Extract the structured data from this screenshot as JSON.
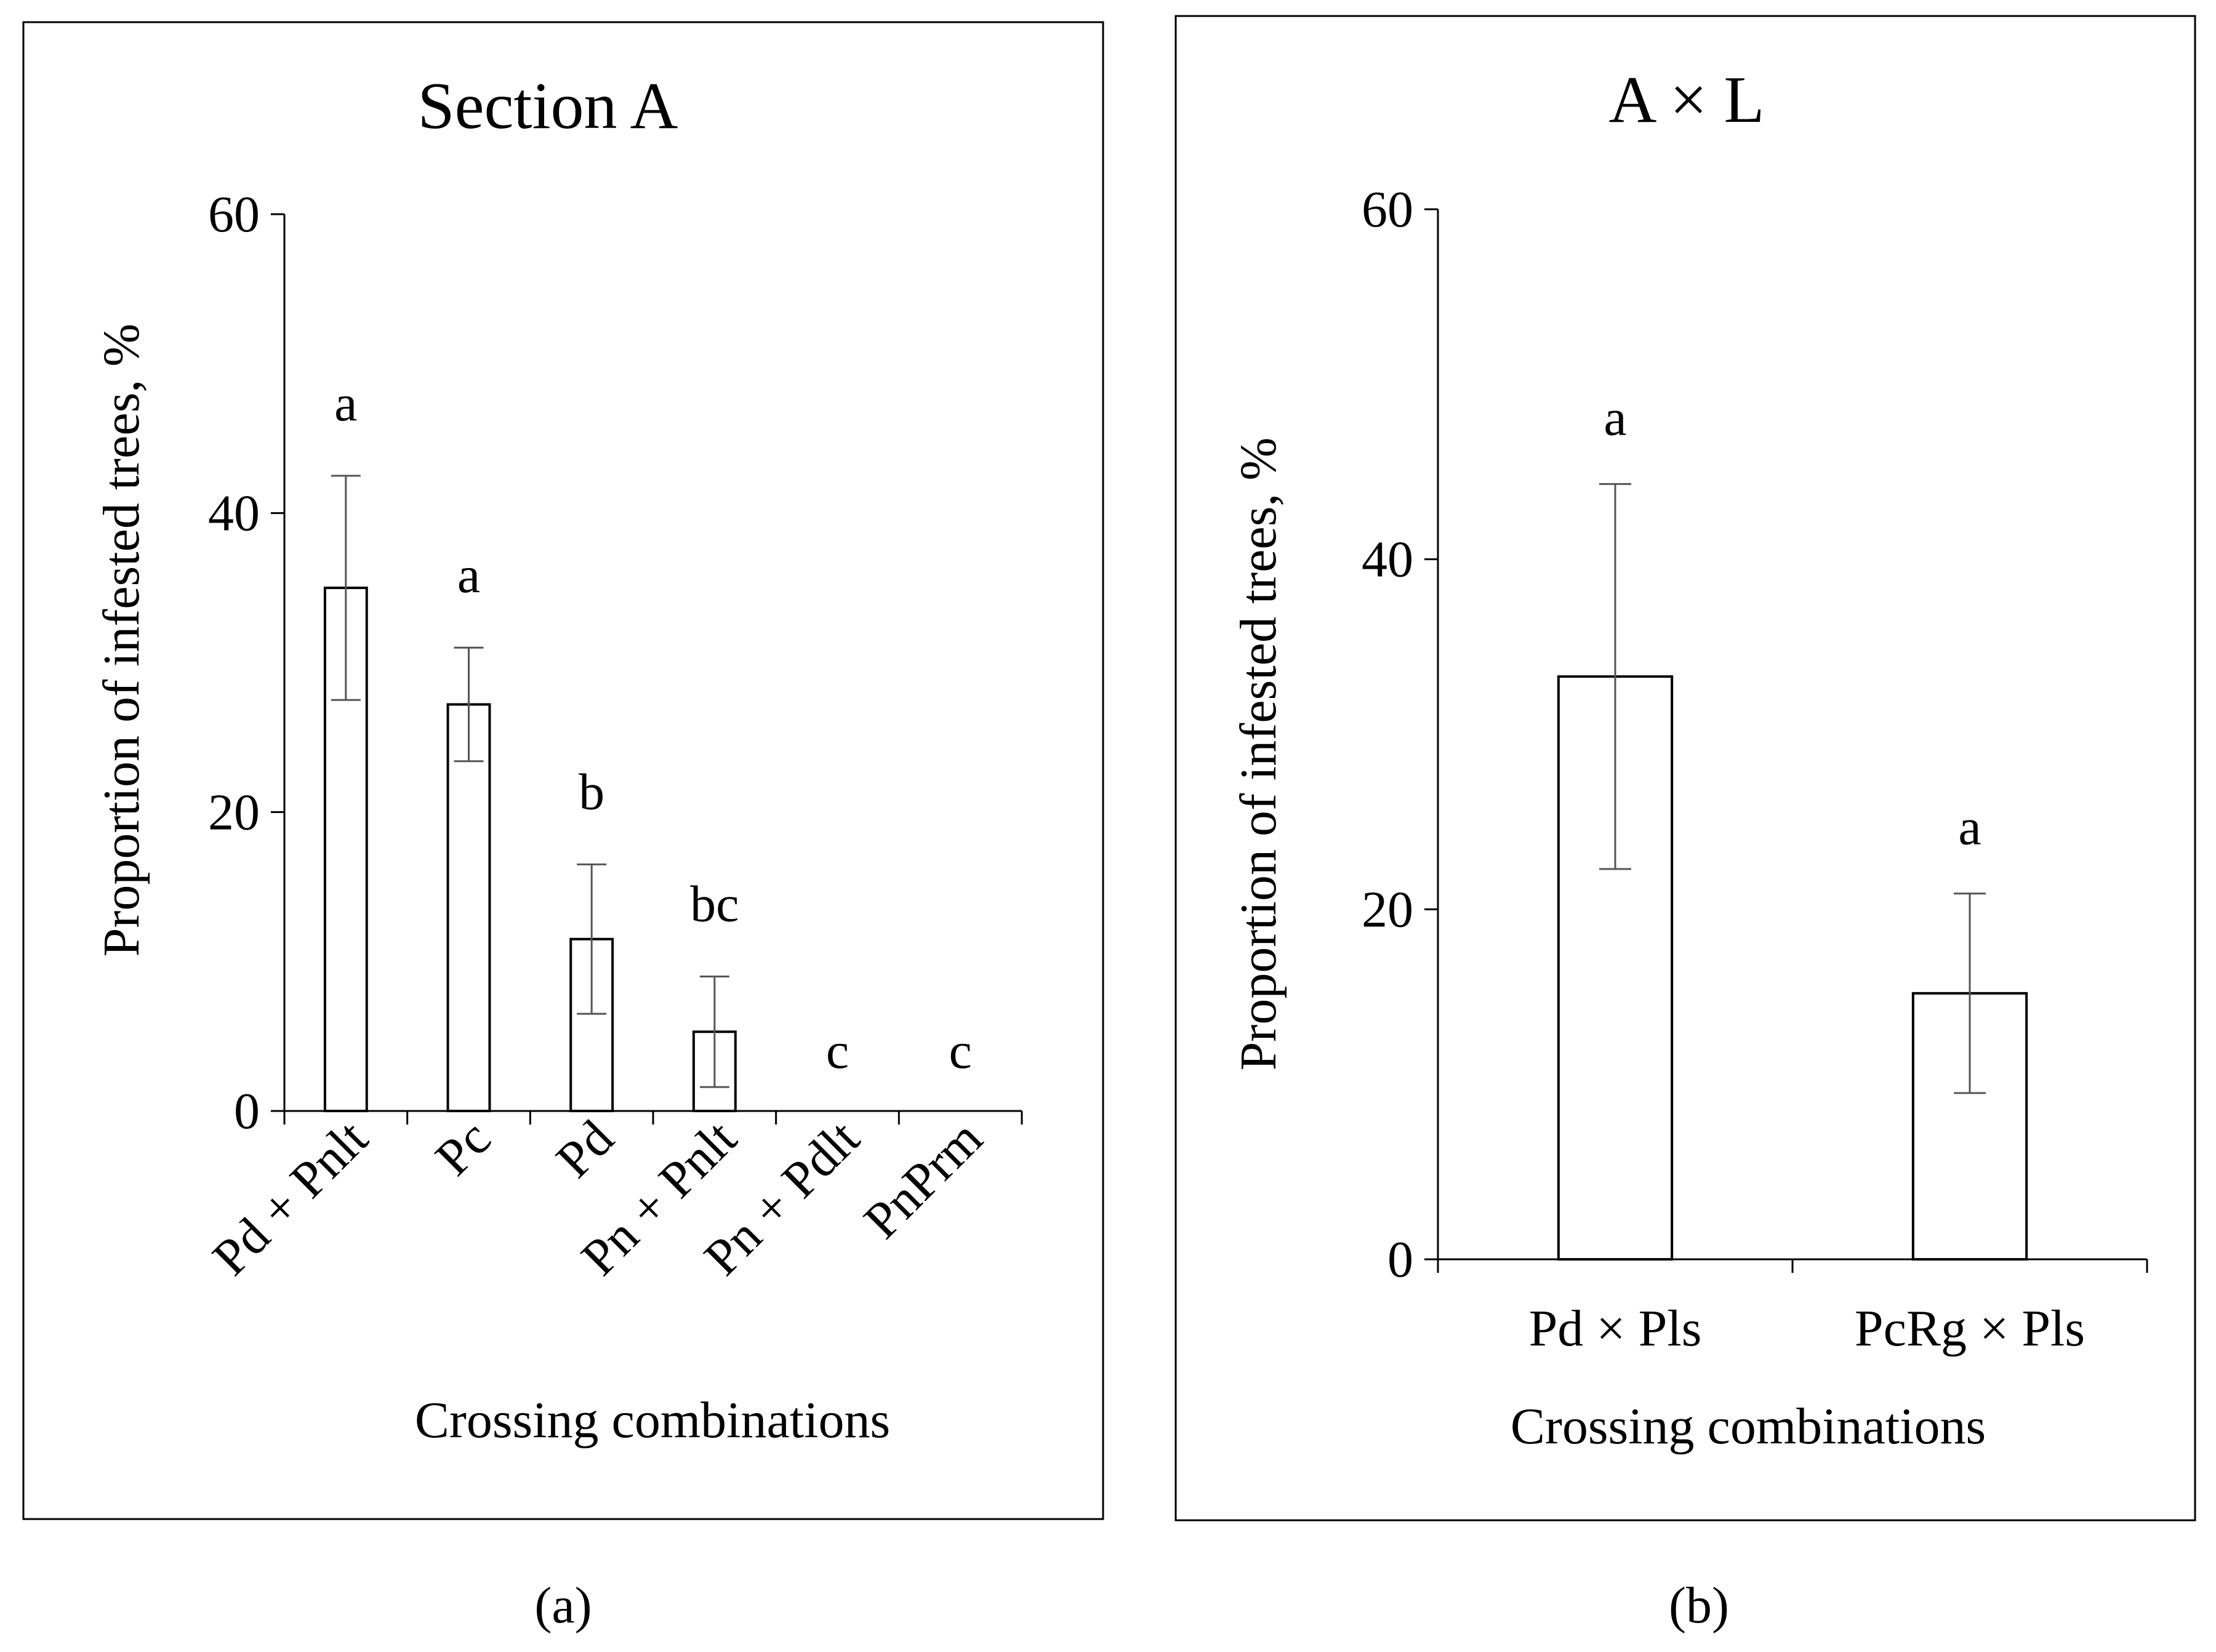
{
  "chart_data": [
    {
      "type": "bar",
      "title": "Section A",
      "xlabel": "Crossing combinations",
      "ylabel": "Proportion of infested trees, %",
      "ylim": [
        0,
        60
      ],
      "yticks": [
        0,
        20,
        40,
        60
      ],
      "grid": false,
      "legend": "none",
      "categories": [
        "Pd + Pnlt",
        "Pc",
        "Pd",
        "Pn + Pnlt",
        "Pn + Pdlt",
        "PnPrm"
      ],
      "values": [
        35.0,
        27.2,
        11.5,
        5.3,
        0,
        0
      ],
      "errors": [
        7.5,
        3.8,
        5.0,
        3.7,
        0,
        0
      ],
      "letters": [
        "a",
        "a",
        "b",
        "bc",
        "c",
        "c"
      ],
      "panel_label": "(a)"
    },
    {
      "type": "bar",
      "title": "A × L",
      "xlabel": "Crossing combinations",
      "ylabel": "Proportion of infested trees, %",
      "ylim": [
        0,
        60
      ],
      "yticks": [
        0,
        20,
        40,
        60
      ],
      "grid": false,
      "legend": "none",
      "categories": [
        "Pd × Pls",
        "PcRg × Pls"
      ],
      "values": [
        33.3,
        15.2
      ],
      "errors": [
        11.0,
        5.7
      ],
      "letters": [
        "a",
        "a"
      ],
      "panel_label": "(b)"
    }
  ]
}
